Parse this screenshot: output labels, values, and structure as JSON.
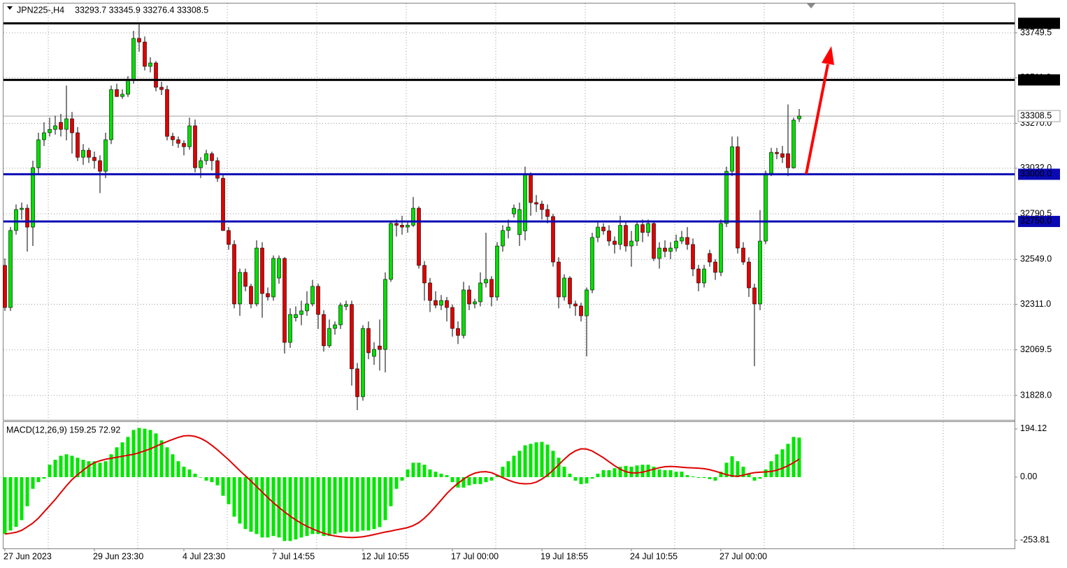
{
  "chart_data": [
    {
      "type": "candlestick",
      "title": "JPN225-,H4",
      "ohlc": "33293.7 33345.9 33276.4 33308.5",
      "up_color": "#00e000",
      "down_color": "#e00000",
      "wick_color": "#000000",
      "grid": true,
      "ylim": [
        31702,
        33905
      ],
      "yticks": [
        33749.5,
        {
          "value": 33511,
          "label": "33511.0"
        },
        {
          "value": 33270,
          "label": "33270.0"
        },
        {
          "value": 33032,
          "label": "33032.0"
        },
        32790.5,
        {
          "value": 32549,
          "label": "32549.0"
        },
        {
          "value": 32311,
          "label": "32311.0"
        },
        32069.5,
        {
          "value": 31828,
          "label": "31828.0"
        }
      ],
      "levels": [
        {
          "value": 33800,
          "label": "33800.0",
          "color": "#000000"
        },
        {
          "value": 33500,
          "label": "33500.0",
          "color": "#000000"
        },
        {
          "value": 33000,
          "label": "33000.0",
          "color": "#0a0ab4"
        },
        {
          "value": 32750,
          "label": "32750.0",
          "color": "#0a0ab4"
        }
      ],
      "last_price": {
        "value": 33308.5,
        "label": "33308.5",
        "color": "#a0a0a0"
      },
      "categories": [
        "27 Jun 2023",
        null,
        null,
        null,
        null,
        null,
        null,
        null,
        null,
        null,
        null,
        null,
        null,
        null,
        null,
        null,
        "29 Jun 23:30",
        null,
        null,
        null,
        null,
        null,
        null,
        null,
        null,
        null,
        null,
        null,
        null,
        null,
        null,
        null,
        "4 Jul 23:30",
        null,
        null,
        null,
        null,
        null,
        null,
        null,
        null,
        null,
        null,
        null,
        null,
        null,
        null,
        null,
        "7 Jul 14:55",
        null,
        null,
        null,
        null,
        null,
        null,
        null,
        null,
        null,
        null,
        null,
        null,
        null,
        null,
        null,
        "12 Jul 10:55",
        null,
        null,
        null,
        null,
        null,
        null,
        null,
        null,
        null,
        null,
        null,
        null,
        null,
        null,
        null,
        "17 Jul 00:00",
        null,
        null,
        null,
        null,
        null,
        null,
        null,
        null,
        null,
        null,
        null,
        null,
        null,
        null,
        null,
        "19 Jul 18:55",
        null,
        null,
        null,
        null,
        null,
        null,
        null,
        null,
        null,
        null,
        null,
        null,
        null,
        null,
        null,
        "24 Jul 10:55",
        null,
        null,
        null,
        null,
        null,
        null,
        null,
        null,
        null,
        null,
        null,
        null,
        null,
        null,
        null,
        "27 Jul 00:00",
        null,
        null,
        null,
        null,
        null,
        null,
        null,
        null,
        null,
        null,
        null,
        null,
        null,
        null
      ],
      "open": [
        32517,
        32294,
        32702,
        32813,
        32820,
        32720,
        33035,
        33183,
        33220,
        33238,
        33275,
        33238,
        33294,
        33220,
        33090,
        33127,
        33090,
        33072,
        33016,
        33183,
        33449,
        33412,
        33424,
        33498,
        33720,
        33701,
        33572,
        33590,
        33461,
        33449,
        33201,
        33183,
        33164,
        33146,
        33257,
        33035,
        33072,
        33109,
        33072,
        32979,
        32702,
        32628,
        32313,
        32480,
        32406,
        32313,
        32609,
        32368,
        32350,
        32450,
        32554,
        32109,
        32240,
        32257,
        32276,
        32313,
        32406,
        32257,
        32091,
        32183,
        32202,
        32300,
        32310,
        31969,
        31821,
        32183,
        32035,
        32090,
        32072,
        32443,
        32739,
        32730,
        32720,
        32730,
        32820,
        32517,
        32424,
        32331,
        32306,
        32331,
        32294,
        32183,
        32146,
        32387,
        32313,
        32324,
        32424,
        32443,
        32350,
        32620,
        32702,
        32790,
        32680,
        32700,
        33000,
        32850,
        32842,
        32813,
        32776,
        32535,
        32350,
        32450,
        32313,
        32302,
        32250,
        32387,
        32665,
        32720,
        32700,
        32646,
        32628,
        32729,
        32620,
        32646,
        32733,
        32692,
        32739,
        32554,
        32609,
        32591,
        32609,
        32646,
        32665,
        32628,
        32498,
        32424,
        32580,
        32535,
        32480,
        32739,
        33016,
        33146,
        32609,
        32535,
        32398,
        32313,
        32646,
        33005,
        33116,
        33109,
        33109,
        33035,
        33293.7
      ],
      "high": [
        32554,
        32720,
        32840,
        32850,
        32840,
        33072,
        33220,
        33275,
        33300,
        33310,
        33320,
        33470,
        33330,
        33250,
        33160,
        33140,
        33120,
        33100,
        33220,
        33470,
        33480,
        33450,
        33520,
        33760,
        33794,
        33730,
        33620,
        33600,
        33490,
        33470,
        33220,
        33200,
        33180,
        33300,
        33290,
        33090,
        33130,
        33120,
        33090,
        33000,
        32720,
        32650,
        32500,
        32500,
        32420,
        32650,
        32640,
        32400,
        32570,
        32570,
        32560,
        32290,
        32300,
        32330,
        32380,
        32440,
        32420,
        32280,
        32230,
        32220,
        32320,
        32330,
        32330,
        32000,
        32200,
        32220,
        32110,
        32230,
        32480,
        32750,
        32760,
        32780,
        32750,
        32880,
        32830,
        32540,
        32450,
        32380,
        32360,
        32350,
        32310,
        32220,
        32430,
        32410,
        32340,
        32480,
        32690,
        32460,
        32640,
        32730,
        32760,
        32840,
        32850,
        33040,
        33010,
        32890,
        32860,
        32840,
        32790,
        32560,
        32470,
        32460,
        32330,
        32320,
        32400,
        32690,
        32750,
        32740,
        32730,
        32670,
        32780,
        32750,
        32700,
        32750,
        32760,
        32760,
        32750,
        32640,
        32650,
        32640,
        32680,
        32700,
        32720,
        32660,
        32520,
        32520,
        32600,
        32550,
        32760,
        33040,
        33200,
        33200,
        32640,
        32560,
        32420,
        32810,
        33020,
        33140,
        33140,
        33150,
        33370,
        33300,
        33345.9
      ],
      "low": [
        32276,
        32276,
        32680,
        32760,
        32590,
        32620,
        33000,
        33150,
        33200,
        33210,
        33200,
        33180,
        33110,
        33070,
        33050,
        33060,
        33030,
        32900,
        32980,
        33160,
        33410,
        33400,
        33410,
        33480,
        33650,
        33550,
        33540,
        33440,
        33420,
        33180,
        33150,
        33140,
        33100,
        33130,
        33010,
        32980,
        33050,
        33020,
        32960,
        32700,
        32600,
        32290,
        32250,
        32380,
        32290,
        32300,
        32240,
        32330,
        32330,
        32420,
        32050,
        32080,
        32220,
        32200,
        32250,
        32300,
        32180,
        32060,
        32080,
        32150,
        32180,
        32280,
        31880,
        31750,
        31800,
        32020,
        31990,
        31960,
        31950,
        32430,
        32670,
        32680,
        32690,
        32720,
        32500,
        32330,
        32270,
        32290,
        32280,
        32220,
        32140,
        32100,
        32130,
        32280,
        32290,
        32300,
        32400,
        32300,
        32330,
        32590,
        32660,
        32770,
        32620,
        32650,
        32780,
        32800,
        32760,
        32740,
        32510,
        32290,
        32330,
        32290,
        32250,
        32220,
        32035,
        32370,
        32640,
        32680,
        32620,
        32580,
        32600,
        32590,
        32510,
        32620,
        32640,
        32670,
        32540,
        32500,
        32560,
        32550,
        32590,
        32630,
        32600,
        32460,
        32380,
        32400,
        32510,
        32440,
        32460,
        32720,
        32990,
        32580,
        32520,
        32350,
        31983,
        32280,
        32630,
        32990,
        33080,
        33060,
        32990,
        33030,
        33276.4
      ],
      "close": [
        32294,
        32702,
        32813,
        32820,
        32720,
        33035,
        33183,
        33220,
        33238,
        33257,
        33238,
        33294,
        33220,
        33090,
        33127,
        33090,
        33072,
        33016,
        33183,
        33449,
        33412,
        33424,
        33498,
        33720,
        33701,
        33572,
        33590,
        33461,
        33449,
        33201,
        33183,
        33164,
        33146,
        33257,
        33035,
        33072,
        33109,
        33072,
        32979,
        32702,
        32628,
        32313,
        32480,
        32406,
        32313,
        32609,
        32368,
        32350,
        32554,
        32554,
        32109,
        32257,
        32257,
        32276,
        32313,
        32406,
        32257,
        32091,
        32183,
        32202,
        32306,
        32310,
        31969,
        31821,
        32183,
        32054,
        32072,
        32072,
        32443,
        32739,
        32730,
        32720,
        32730,
        32820,
        32517,
        32424,
        32331,
        32306,
        32331,
        32294,
        32183,
        32146,
        32387,
        32313,
        32324,
        32424,
        32443,
        32350,
        32620,
        32702,
        32720,
        32820,
        32813,
        33000,
        32850,
        32842,
        32813,
        32776,
        32535,
        32350,
        32450,
        32313,
        32302,
        32250,
        32387,
        32665,
        32720,
        32700,
        32646,
        32628,
        32729,
        32620,
        32646,
        32733,
        32692,
        32739,
        32554,
        32609,
        32591,
        32609,
        32646,
        32665,
        32628,
        32498,
        32424,
        32498,
        32535,
        32480,
        32739,
        33016,
        33146,
        32609,
        32535,
        32398,
        32313,
        32646,
        33005,
        33116,
        33109,
        33090,
        33035,
        33287,
        33308.5
      ]
    },
    {
      "type": "macd",
      "title": "MACD(12,26,9) 159.25 72.92",
      "hist_color": "#00e600",
      "signal_color": "#e00000",
      "ylim": [
        -287,
        222
      ],
      "yticks": [
        194.12,
        {
          "value": 0,
          "label": "0.00"
        },
        -253.81
      ],
      "histogram": [
        -229,
        -215,
        -200,
        -173,
        -117,
        -47,
        -20,
        -6,
        50,
        70,
        86,
        92,
        86,
        78,
        70,
        64,
        64,
        58,
        64,
        92,
        120,
        140,
        162,
        190,
        198,
        195,
        190,
        176,
        148,
        120,
        92,
        64,
        42,
        31,
        14,
        -2,
        -14,
        -20,
        -33,
        -75,
        -109,
        -159,
        -187,
        -209,
        -220,
        -229,
        -243,
        -243,
        -237,
        -243,
        -257,
        -257,
        -251,
        -243,
        -237,
        -229,
        -229,
        -237,
        -237,
        -229,
        -223,
        -220,
        -220,
        -220,
        -215,
        -215,
        -209,
        -201,
        -173,
        -117,
        -47,
        -14,
        31,
        58,
        58,
        50,
        31,
        22,
        14,
        8,
        -20,
        -42,
        -42,
        -33,
        -28,
        -28,
        -20,
        -14,
        8,
        42,
        64,
        86,
        106,
        128,
        134,
        140,
        142,
        131,
        106,
        78,
        42,
        14,
        -14,
        -28,
        -25,
        -6,
        14,
        28,
        28,
        36,
        42,
        45,
        42,
        47,
        50,
        50,
        42,
        31,
        28,
        28,
        22,
        22,
        8,
        3,
        -3,
        -3,
        -8,
        -14,
        22,
        58,
        84,
        64,
        42,
        14,
        -14,
        -6,
        31,
        64,
        92,
        112,
        134,
        162,
        159.25
      ],
      "signal": [
        -229,
        -226,
        -222,
        -214,
        -200,
        -185,
        -165,
        -140,
        -115,
        -90,
        -62,
        -35,
        -10,
        10,
        28,
        45,
        58,
        66,
        72,
        76,
        80,
        84,
        88,
        92,
        98,
        106,
        114,
        124,
        134,
        143,
        152,
        160,
        166,
        167,
        164,
        156,
        144,
        128,
        110,
        90,
        70,
        48,
        26,
        5,
        -16,
        -38,
        -60,
        -82,
        -103,
        -122,
        -140,
        -157,
        -172,
        -186,
        -198,
        -208,
        -218,
        -226,
        -232,
        -237,
        -240,
        -242,
        -243,
        -242,
        -240,
        -236,
        -231,
        -226,
        -221,
        -217,
        -212,
        -208,
        -203,
        -195,
        -183,
        -165,
        -143,
        -118,
        -92,
        -66,
        -44,
        -25,
        -8,
        6,
        16,
        21,
        22,
        18,
        8,
        -2,
        -12,
        -20,
        -25,
        -27,
        -26,
        -20,
        -8,
        8,
        28,
        50,
        72,
        92,
        106,
        114,
        113,
        105,
        92,
        78,
        62,
        46,
        32,
        22,
        17,
        17,
        20,
        26,
        32,
        38,
        42,
        43,
        42,
        40,
        38,
        37,
        36,
        34,
        30,
        24,
        17,
        10,
        5,
        3,
        8,
        14,
        18,
        20,
        21,
        23,
        28,
        36,
        46,
        58,
        72.92
      ]
    }
  ]
}
